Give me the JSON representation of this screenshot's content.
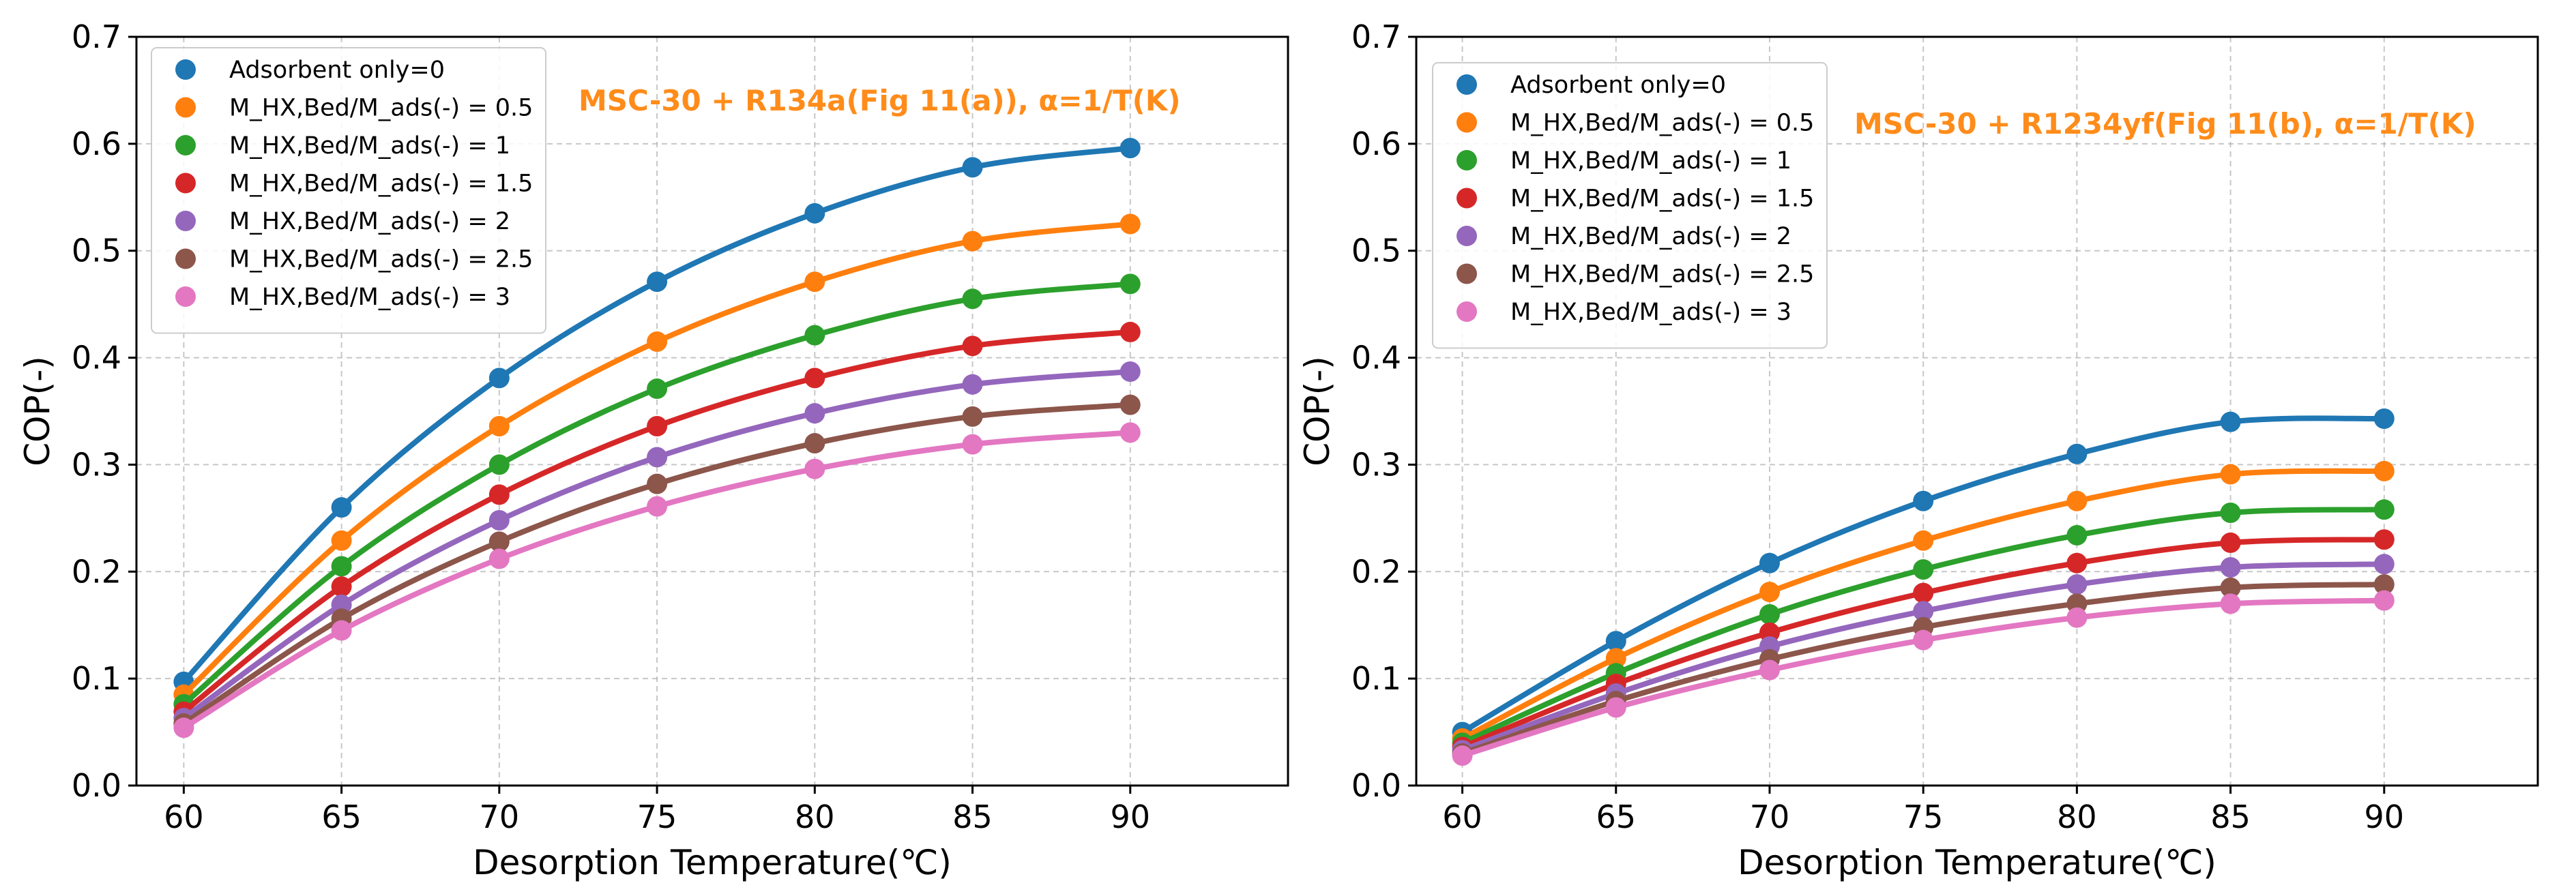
{
  "chart_data": [
    {
      "type": "line",
      "title": "",
      "annotation": "MSC-30 + R134a(Fig 11(a)), α=1/T(K)",
      "annotation_color": "#ff8c1a",
      "xlabel": "Desorption Temperature(℃)",
      "ylabel": "COP(-)",
      "xlim": [
        58.5,
        95
      ],
      "ylim": [
        0.0,
        0.7
      ],
      "x": [
        60,
        65,
        70,
        75,
        80,
        85,
        90
      ],
      "x_ticks": [
        "60",
        "65",
        "70",
        "75",
        "80",
        "85",
        "90"
      ],
      "y_ticks": [
        "0.0",
        "0.1",
        "0.2",
        "0.3",
        "0.4",
        "0.5",
        "0.6",
        "0.7"
      ],
      "grid": true,
      "legend_position": "upper-left",
      "series": [
        {
          "name": "Adsorbent only=0",
          "color": "#1f77b4",
          "values": [
            0.097,
            0.26,
            0.381,
            0.471,
            0.535,
            0.578,
            0.596
          ]
        },
        {
          "name": "M_HX,Bed/M_ads(-) = 0.5",
          "color": "#ff7f0e",
          "values": [
            0.085,
            0.229,
            0.336,
            0.415,
            0.471,
            0.509,
            0.525
          ]
        },
        {
          "name": "M_HX,Bed/M_ads(-) = 1",
          "color": "#2ca02c",
          "values": [
            0.076,
            0.205,
            0.3,
            0.371,
            0.421,
            0.455,
            0.469
          ]
        },
        {
          "name": "M_HX,Bed/M_ads(-) = 1.5",
          "color": "#d62728",
          "values": [
            0.069,
            0.186,
            0.272,
            0.336,
            0.381,
            0.411,
            0.424
          ]
        },
        {
          "name": "M_HX,Bed/M_ads(-) = 2",
          "color": "#9467bd",
          "values": [
            0.063,
            0.169,
            0.248,
            0.307,
            0.348,
            0.375,
            0.387
          ]
        },
        {
          "name": "M_HX,Bed/M_ads(-) = 2.5",
          "color": "#8c564b",
          "values": [
            0.058,
            0.156,
            0.228,
            0.282,
            0.32,
            0.345,
            0.356
          ]
        },
        {
          "name": "M_HX,Bed/M_ads(-) = 3",
          "color": "#e377c2",
          "values": [
            0.054,
            0.145,
            0.212,
            0.261,
            0.296,
            0.319,
            0.33
          ]
        }
      ]
    },
    {
      "type": "line",
      "title": "",
      "annotation": "MSC-30 + R1234yf(Fig 11(b), α=1/T(K)",
      "annotation_color": "#ff8c1a",
      "xlabel": "Desorption Temperature(℃)",
      "ylabel": "COP(-)",
      "xlim": [
        58.5,
        95
      ],
      "ylim": [
        0.0,
        0.7
      ],
      "x": [
        60,
        65,
        70,
        75,
        80,
        85,
        90
      ],
      "x_ticks": [
        "60",
        "65",
        "70",
        "75",
        "80",
        "85",
        "90"
      ],
      "y_ticks": [
        "0.0",
        "0.1",
        "0.2",
        "0.3",
        "0.4",
        "0.5",
        "0.6",
        "0.7"
      ],
      "grid": true,
      "legend_position": "upper-left",
      "series": [
        {
          "name": "Adsorbent only=0",
          "color": "#1f77b4",
          "values": [
            0.05,
            0.135,
            0.208,
            0.266,
            0.31,
            0.34,
            0.343
          ]
        },
        {
          "name": "M_HX,Bed/M_ads(-) = 0.5",
          "color": "#ff7f0e",
          "values": [
            0.044,
            0.119,
            0.181,
            0.229,
            0.266,
            0.291,
            0.294
          ]
        },
        {
          "name": "M_HX,Bed/M_ads(-) = 1",
          "color": "#2ca02c",
          "values": [
            0.04,
            0.105,
            0.16,
            0.202,
            0.234,
            0.255,
            0.258
          ]
        },
        {
          "name": "M_HX,Bed/M_ads(-) = 1.5",
          "color": "#d62728",
          "values": [
            0.036,
            0.095,
            0.143,
            0.18,
            0.208,
            0.227,
            0.23
          ]
        },
        {
          "name": "M_HX,Bed/M_ads(-) = 2",
          "color": "#9467bd",
          "values": [
            0.033,
            0.086,
            0.13,
            0.163,
            0.188,
            0.204,
            0.207
          ]
        },
        {
          "name": "M_HX,Bed/M_ads(-) = 2.5",
          "color": "#8c564b",
          "values": [
            0.03,
            0.079,
            0.118,
            0.148,
            0.17,
            0.185,
            0.188
          ]
        },
        {
          "name": "M_HX,Bed/M_ads(-) = 3",
          "color": "#e377c2",
          "values": [
            0.028,
            0.073,
            0.108,
            0.136,
            0.157,
            0.17,
            0.173
          ]
        }
      ]
    }
  ]
}
